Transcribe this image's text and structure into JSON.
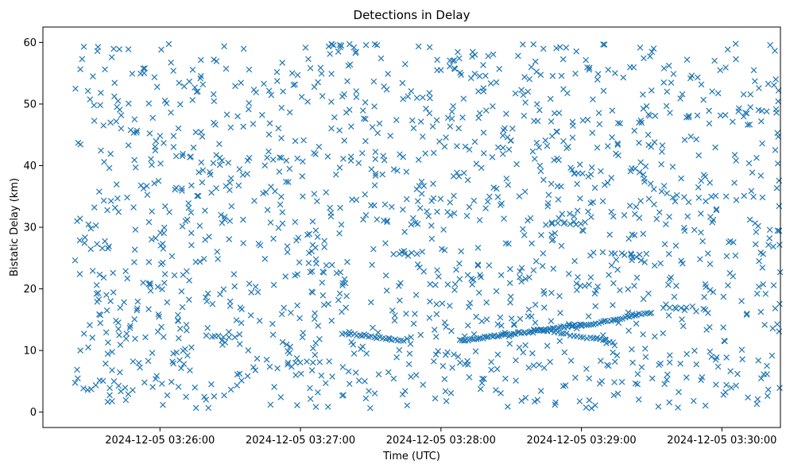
{
  "chart_data": {
    "type": "scatter",
    "title": "Detections in Delay",
    "xlabel": "Time (UTC)",
    "ylabel": "Bistatic Delay (km)",
    "x_axis": "time",
    "xlim": [
      "2024-12-05 03:25:10",
      "2024-12-05 03:30:25"
    ],
    "ylim": [
      -2.5,
      62.5
    ],
    "x_ticks": [
      "2024-12-05 03:26:00",
      "2024-12-05 03:27:00",
      "2024-12-05 03:28:00",
      "2024-12-05 03:29:00",
      "2024-12-05 03:30:00"
    ],
    "y_ticks": [
      0,
      10,
      20,
      30,
      40,
      50,
      60
    ],
    "grid": false,
    "marker": "x",
    "marker_color": "#1f77b4",
    "tracks": [
      {
        "start": [
          "2024-12-05 03:27:18",
          12.8
        ],
        "end": [
          "2024-12-05 03:27:44",
          11.5
        ],
        "count": 22
      },
      {
        "start": [
          "2024-12-05 03:28:08",
          11.6
        ],
        "end": [
          "2024-12-05 03:29:00",
          14.2
        ],
        "count": 60
      },
      {
        "start": [
          "2024-12-05 03:28:40",
          13.5
        ],
        "end": [
          "2024-12-05 03:29:12",
          11.5
        ],
        "count": 24
      },
      {
        "start": [
          "2024-12-05 03:29:00",
          14.0
        ],
        "end": [
          "2024-12-05 03:29:30",
          16.2
        ],
        "count": 30
      },
      {
        "start": [
          "2024-12-05 03:29:35",
          16.8
        ],
        "end": [
          "2024-12-05 03:29:45",
          17.1
        ],
        "count": 5
      },
      {
        "start": [
          "2024-12-05 03:26:20",
          12.4
        ],
        "end": [
          "2024-12-05 03:26:32",
          12.2
        ],
        "count": 6
      },
      {
        "start": [
          "2024-12-05 03:26:55",
          8.1
        ],
        "end": [
          "2024-12-05 03:27:08",
          8.2
        ],
        "count": 6
      },
      {
        "start": [
          "2024-12-05 03:29:05",
          25.9
        ],
        "end": [
          "2024-12-05 03:29:25",
          25.5
        ],
        "count": 6
      },
      {
        "start": [
          "2024-12-05 03:28:45",
          30.5
        ],
        "end": [
          "2024-12-05 03:29:00",
          30.6
        ],
        "count": 7
      },
      {
        "start": [
          "2024-12-05 03:27:40",
          25.5
        ],
        "end": [
          "2024-12-05 03:27:52",
          25.9
        ],
        "count": 6
      }
    ],
    "scatter_noise": {
      "x_range": [
        "2024-12-05 03:25:23",
        "2024-12-05 03:30:25"
      ],
      "y_range": [
        0.5,
        59.8
      ],
      "count": 1500
    }
  }
}
